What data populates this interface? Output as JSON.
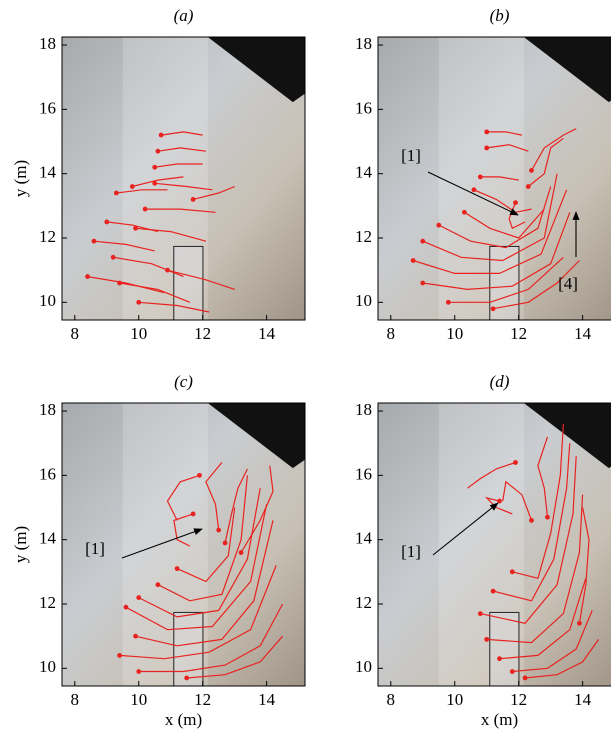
{
  "chart_data": [
    {
      "type": "line",
      "title": "(a)",
      "ylabel": "y (m)",
      "color": "#e8231f",
      "xlim": [
        7.6,
        15.2
      ],
      "ylim": [
        9.45,
        18.25
      ],
      "xticks": [
        8,
        10,
        12,
        14
      ],
      "yticks": [
        10,
        12,
        14,
        16,
        18
      ],
      "tracks": [
        {
          "x": [
            10.7,
            11.4,
            12.0
          ],
          "y": [
            15.2,
            15.3,
            15.2
          ]
        },
        {
          "x": [
            10.6,
            11.3,
            12.1
          ],
          "y": [
            14.7,
            14.8,
            14.7
          ]
        },
        {
          "x": [
            10.5,
            11.2,
            12.0
          ],
          "y": [
            14.2,
            14.3,
            14.3
          ]
        },
        {
          "x": [
            9.8,
            10.6,
            11.4
          ],
          "y": [
            13.6,
            13.8,
            13.9
          ]
        },
        {
          "x": [
            10.5,
            11.5,
            12.3
          ],
          "y": [
            13.7,
            13.6,
            13.5
          ]
        },
        {
          "x": [
            9.3,
            10.1,
            10.9
          ],
          "y": [
            13.4,
            13.5,
            13.5
          ]
        },
        {
          "x": [
            10.2,
            11.3,
            12.4
          ],
          "y": [
            12.9,
            12.9,
            12.8
          ]
        },
        {
          "x": [
            9.0,
            9.8,
            10.6
          ],
          "y": [
            12.5,
            12.4,
            12.2
          ]
        },
        {
          "x": [
            9.9,
            11.0,
            12.1
          ],
          "y": [
            12.3,
            12.2,
            11.9
          ]
        },
        {
          "x": [
            8.6,
            9.6,
            10.5
          ],
          "y": [
            11.9,
            11.8,
            11.6
          ]
        },
        {
          "x": [
            9.2,
            10.4,
            11.4
          ],
          "y": [
            11.4,
            11.2,
            10.8
          ]
        },
        {
          "x": [
            8.4,
            9.6,
            10.8
          ],
          "y": [
            10.8,
            10.6,
            10.3
          ]
        },
        {
          "x": [
            9.4,
            10.6,
            11.6
          ],
          "y": [
            10.6,
            10.4,
            10.0
          ]
        },
        {
          "x": [
            10.0,
            11.2,
            12.2
          ],
          "y": [
            10.0,
            9.9,
            9.7
          ]
        },
        {
          "x": [
            10.9,
            12.1,
            13.0
          ],
          "y": [
            11.0,
            10.7,
            10.4
          ]
        },
        {
          "x": [
            11.7,
            12.5,
            13.0
          ],
          "y": [
            13.2,
            13.4,
            13.6
          ]
        }
      ]
    },
    {
      "type": "line",
      "title": "(b)",
      "color": "#e8231f",
      "xlim": [
        7.6,
        15.2
      ],
      "ylim": [
        9.45,
        18.25
      ],
      "xticks": [
        8,
        10,
        12,
        14
      ],
      "yticks": [
        10,
        12,
        14,
        16,
        18
      ],
      "annotations": [
        "[1]",
        "[4]"
      ],
      "tracks": [
        {
          "x": [
            11.0,
            11.6,
            12.1
          ],
          "y": [
            15.3,
            15.3,
            15.2
          ]
        },
        {
          "x": [
            11.0,
            11.7,
            12.3
          ],
          "y": [
            14.8,
            14.9,
            14.7
          ]
        },
        {
          "x": [
            11.9,
            11.7,
            11.8,
            12.2
          ],
          "y": [
            13.1,
            12.6,
            12.3,
            12.5
          ]
        },
        {
          "x": [
            10.6,
            11.3,
            11.9,
            12.4
          ],
          "y": [
            13.5,
            13.2,
            12.8,
            12.9
          ]
        },
        {
          "x": [
            10.3,
            11.1,
            12.0,
            12.8
          ],
          "y": [
            12.8,
            12.3,
            12.0,
            12.9
          ]
        },
        {
          "x": [
            9.5,
            10.5,
            11.6,
            12.6,
            13.0
          ],
          "y": [
            12.4,
            11.9,
            11.7,
            12.3,
            13.6
          ]
        },
        {
          "x": [
            9.0,
            10.2,
            11.5,
            12.8,
            13.2
          ],
          "y": [
            11.9,
            11.4,
            11.3,
            12.0,
            14.0
          ]
        },
        {
          "x": [
            8.7,
            10.0,
            11.4,
            12.7,
            13.5
          ],
          "y": [
            11.3,
            10.9,
            10.9,
            11.5,
            13.5
          ]
        },
        {
          "x": [
            9.0,
            10.4,
            11.8,
            13.0,
            13.6
          ],
          "y": [
            10.6,
            10.4,
            10.5,
            11.2,
            12.8
          ]
        },
        {
          "x": [
            9.8,
            11.1,
            12.3,
            13.4
          ],
          "y": [
            10.0,
            10.0,
            10.4,
            11.4
          ]
        },
        {
          "x": [
            11.2,
            12.3,
            13.2,
            13.9
          ],
          "y": [
            9.8,
            10.0,
            10.6,
            11.3
          ]
        },
        {
          "x": [
            12.4,
            12.8,
            13.4,
            13.8
          ],
          "y": [
            14.1,
            14.8,
            15.2,
            15.4
          ]
        },
        {
          "x": [
            12.3,
            12.8,
            13.0,
            13.4
          ],
          "y": [
            13.6,
            14.0,
            14.8,
            15.1
          ]
        },
        {
          "x": [
            10.8,
            11.4,
            12.0
          ],
          "y": [
            13.9,
            13.9,
            13.8
          ]
        }
      ]
    },
    {
      "type": "line",
      "title": "(c)",
      "xlabel": "x (m)",
      "ylabel": "y (m)",
      "color": "#e8231f",
      "xlim": [
        7.6,
        15.2
      ],
      "ylim": [
        9.45,
        18.25
      ],
      "xticks": [
        8,
        10,
        12,
        14
      ],
      "yticks": [
        10,
        12,
        14,
        16,
        18
      ],
      "annotations": [
        "[1]"
      ],
      "tracks": [
        {
          "x": [
            11.9,
            11.3,
            10.9,
            11.2
          ],
          "y": [
            16.0,
            15.8,
            15.2,
            14.6
          ]
        },
        {
          "x": [
            11.7,
            11.1,
            11.2,
            11.6
          ],
          "y": [
            14.8,
            14.6,
            14.0,
            13.8
          ]
        },
        {
          "x": [
            12.5,
            12.4,
            12.1,
            12.6
          ],
          "y": [
            14.3,
            15.1,
            15.8,
            16.4
          ]
        },
        {
          "x": [
            11.2,
            12.1,
            12.8,
            13.0
          ],
          "y": [
            13.1,
            12.7,
            13.5,
            15.0
          ]
        },
        {
          "x": [
            10.6,
            11.6,
            12.6,
            13.2,
            13.4
          ],
          "y": [
            12.6,
            12.1,
            12.3,
            14.0,
            16.0
          ]
        },
        {
          "x": [
            10.0,
            11.2,
            12.5,
            13.4,
            13.8
          ],
          "y": [
            12.2,
            11.6,
            11.8,
            13.4,
            15.6
          ]
        },
        {
          "x": [
            9.6,
            10.9,
            12.3,
            13.5,
            14.0
          ],
          "y": [
            11.9,
            11.2,
            11.3,
            12.7,
            15.1
          ]
        },
        {
          "x": [
            9.9,
            11.2,
            12.6,
            13.6,
            14.2
          ],
          "y": [
            11.0,
            10.7,
            10.9,
            12.1,
            14.6
          ]
        },
        {
          "x": [
            9.4,
            10.8,
            12.2,
            13.5,
            14.3
          ],
          "y": [
            10.4,
            10.3,
            10.5,
            11.2,
            13.2
          ]
        },
        {
          "x": [
            10.0,
            11.4,
            12.7,
            13.8,
            14.5
          ],
          "y": [
            9.9,
            9.9,
            10.1,
            10.7,
            12.0
          ]
        },
        {
          "x": [
            11.5,
            12.7,
            13.8,
            14.5
          ],
          "y": [
            9.7,
            9.8,
            10.2,
            11.0
          ]
        },
        {
          "x": [
            13.2,
            13.8,
            14.2,
            14.1
          ],
          "y": [
            13.6,
            14.6,
            15.5,
            16.3
          ]
        },
        {
          "x": [
            12.7,
            12.9,
            13.1,
            13.4
          ],
          "y": [
            13.9,
            14.8,
            15.6,
            16.2
          ]
        }
      ]
    },
    {
      "type": "line",
      "title": "(d)",
      "xlabel": "x (m)",
      "color": "#e8231f",
      "xlim": [
        7.6,
        15.2
      ],
      "ylim": [
        9.45,
        18.25
      ],
      "xticks": [
        8,
        10,
        12,
        14
      ],
      "yticks": [
        10,
        12,
        14,
        16,
        18
      ],
      "annotations": [
        "[1]"
      ],
      "tracks": [
        {
          "x": [
            11.9,
            11.3,
            10.8,
            10.4
          ],
          "y": [
            16.4,
            16.2,
            15.9,
            15.6
          ]
        },
        {
          "x": [
            11.4,
            11.0,
            11.3,
            11.8
          ],
          "y": [
            15.2,
            15.3,
            15.0,
            14.8
          ]
        },
        {
          "x": [
            12.4,
            12.1,
            11.6,
            11.5
          ],
          "y": [
            14.6,
            15.4,
            15.8,
            15.2
          ]
        },
        {
          "x": [
            12.9,
            12.8,
            12.6,
            12.9
          ],
          "y": [
            14.7,
            15.6,
            16.3,
            17.2
          ]
        },
        {
          "x": [
            11.8,
            12.6,
            13.0,
            13.3,
            13.4
          ],
          "y": [
            13.0,
            12.8,
            14.2,
            16.0,
            17.6
          ]
        },
        {
          "x": [
            11.2,
            12.4,
            13.1,
            13.5,
            13.6
          ],
          "y": [
            12.4,
            12.1,
            13.4,
            15.6,
            17.0
          ]
        },
        {
          "x": [
            10.8,
            12.2,
            13.2,
            13.7,
            13.8
          ],
          "y": [
            11.7,
            11.4,
            12.6,
            14.8,
            16.6
          ]
        },
        {
          "x": [
            11.0,
            12.4,
            13.4,
            13.9,
            14.0
          ],
          "y": [
            10.9,
            10.8,
            11.7,
            13.6,
            15.4
          ]
        },
        {
          "x": [
            11.4,
            12.6,
            13.6,
            14.1
          ],
          "y": [
            10.3,
            10.4,
            11.2,
            12.8
          ]
        },
        {
          "x": [
            11.8,
            12.9,
            13.8,
            14.3
          ],
          "y": [
            9.9,
            10.0,
            10.6,
            11.8
          ]
        },
        {
          "x": [
            12.2,
            13.2,
            14.0,
            14.5
          ],
          "y": [
            9.7,
            9.8,
            10.2,
            10.9
          ]
        },
        {
          "x": [
            13.9,
            14.1,
            14.2,
            14.0
          ],
          "y": [
            11.4,
            12.6,
            14.0,
            15.0
          ]
        }
      ]
    }
  ]
}
